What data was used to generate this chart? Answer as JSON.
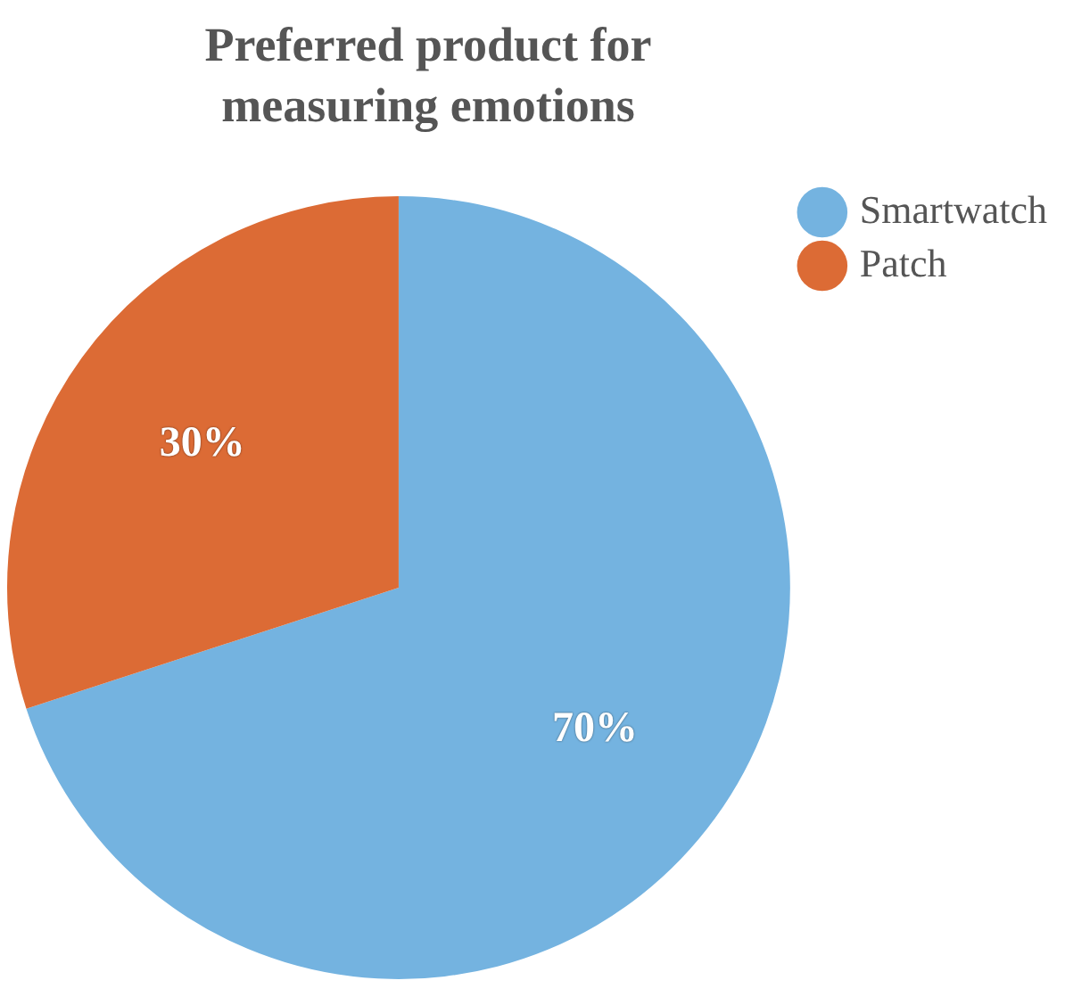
{
  "chart_data": {
    "type": "pie",
    "title": "Preferred product for measuring emotions",
    "categories": [
      "Smartwatch",
      "Patch"
    ],
    "values": [
      70,
      30
    ],
    "colors": [
      "#74b3e0",
      "#dc6b35"
    ],
    "value_labels": [
      "70%",
      "30%"
    ],
    "legend": "top right"
  }
}
